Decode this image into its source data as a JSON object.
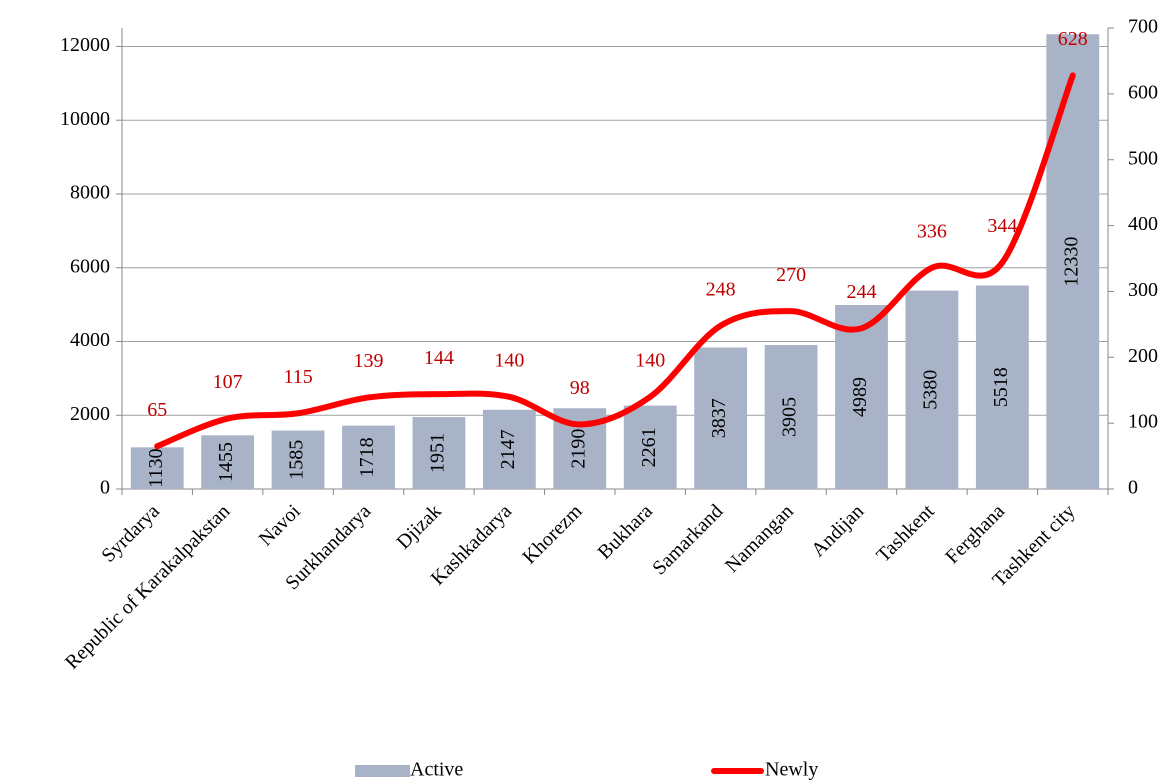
{
  "chart_data": {
    "type": "combo",
    "categories": [
      "Syrdarya",
      "Republic of Karakalpakstan",
      "Navoi",
      "Surkhandarya",
      "Djizak",
      "Kashkadarya",
      "Khorezm",
      "Bukhara",
      "Samarkand",
      "Namangan",
      "Andijan",
      "Tashkent",
      "Ferghana",
      "Tashkent city"
    ],
    "series": [
      {
        "name": "Active",
        "type": "bar",
        "color": "#a9b3c8",
        "values": [
          1130,
          1455,
          1585,
          1718,
          1951,
          2147,
          2190,
          2261,
          3837,
          3905,
          4989,
          5380,
          5518,
          12330
        ]
      },
      {
        "name": "Newly",
        "type": "line",
        "axis": "y2",
        "color": "#ff0000",
        "smooth": true,
        "values": [
          65,
          107,
          115,
          139,
          144,
          140,
          98,
          140,
          248,
          270,
          244,
          336,
          344,
          628
        ]
      }
    ],
    "ylim": [
      0,
      12500
    ],
    "yticks": [
      0,
      2000,
      4000,
      6000,
      8000,
      10000,
      12000
    ],
    "y2lim": [
      0,
      700
    ],
    "y2ticks": [
      0,
      100,
      200,
      300,
      400,
      500,
      600,
      700
    ],
    "grid": true,
    "legend": "bottom"
  }
}
